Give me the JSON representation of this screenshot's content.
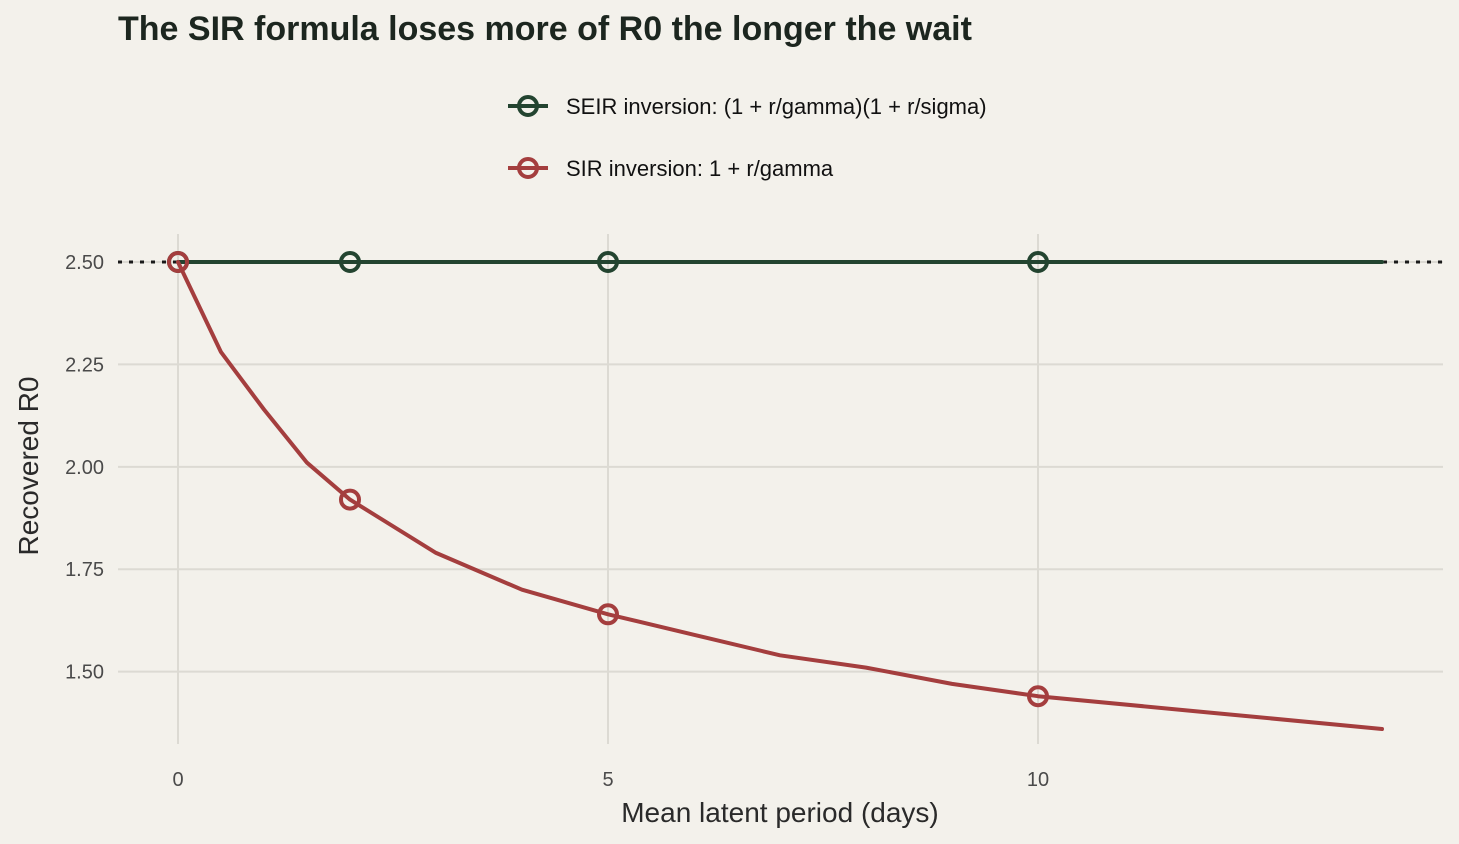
{
  "chart_data": {
    "type": "line",
    "title": "The SIR formula loses more of R0 the longer the wait",
    "xlabel": "Mean latent period (days)",
    "ylabel": "Recovered R0",
    "xlim": [
      0,
      14
    ],
    "ylim": [
      1.36,
      2.5
    ],
    "x_ticks": [
      0,
      5,
      10
    ],
    "y_ticks": [
      1.5,
      1.75,
      2.0,
      2.25,
      2.5
    ],
    "grid": true,
    "legend_position": "top",
    "reference_line": {
      "y": 2.5,
      "style": "dotted"
    },
    "series": [
      {
        "name": "SEIR inversion: (1 + r/gamma)(1 + r/sigma)",
        "color": "#234430",
        "x": [
          0,
          2,
          5,
          10,
          14
        ],
        "y": [
          2.5,
          2.5,
          2.5,
          2.5,
          2.5
        ],
        "marker_x": [
          0,
          2,
          5,
          10
        ],
        "marker_y": [
          2.5,
          2.5,
          2.5,
          2.5
        ]
      },
      {
        "name": "SIR inversion: 1 + r/gamma",
        "color": "#a43e3e",
        "x": [
          0,
          0.5,
          1,
          1.5,
          2,
          3,
          4,
          5,
          6,
          7,
          8,
          9,
          10,
          12,
          14
        ],
        "y": [
          2.5,
          2.28,
          2.14,
          2.01,
          1.92,
          1.79,
          1.7,
          1.64,
          1.59,
          1.54,
          1.51,
          1.47,
          1.44,
          1.4,
          1.36
        ],
        "marker_x": [
          0,
          2,
          5,
          10
        ],
        "marker_y": [
          2.5,
          1.92,
          1.64,
          1.44
        ]
      }
    ]
  }
}
